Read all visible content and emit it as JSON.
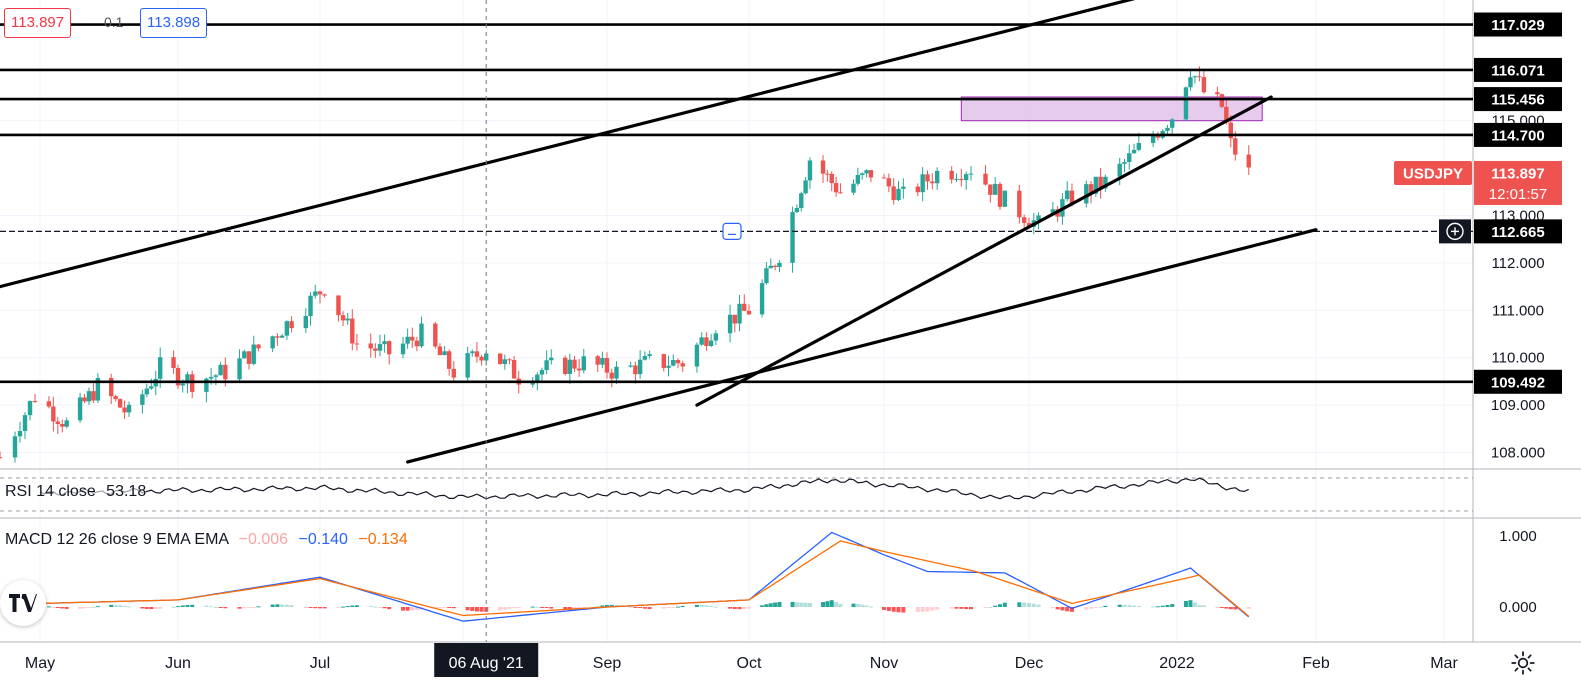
{
  "header": {
    "bid": "113.897",
    "spread": "0.1",
    "ask": "113.898"
  },
  "symbol": {
    "name": "USDJPY",
    "last": "113.897",
    "countdown": "12:01:57"
  },
  "colors": {
    "up": "#26a69a",
    "down": "#ef5350",
    "rsi_line": "#131722",
    "macd_line": "#2962ff",
    "signal_line": "#ff6d00",
    "box_fill": "#e1bee7",
    "box_stroke": "#9c27b0",
    "trendline": "#000000",
    "crosshair_label_bg": "#131722"
  },
  "rsi": {
    "label": "RSI 14 close",
    "value": "53.18"
  },
  "macd": {
    "label": "MACD 12 26 close 9 EMA EMA",
    "hist": "−0.006",
    "macd": "−0.140",
    "signal": "−0.134",
    "axis_ticks": [
      "1.000",
      "0.000"
    ]
  },
  "x_axis": {
    "labels": [
      "May",
      "Jun",
      "Jul",
      "06 Aug '21",
      "Sep",
      "Oct",
      "Nov",
      "Dec",
      "2022",
      "Feb",
      "Mar"
    ],
    "crosshair_label": "06 Aug '21"
  },
  "icons": {
    "logo": "tradingview-logo-icon",
    "settings": "gear-icon",
    "crosshair_add": "plus-circle-icon"
  },
  "chart_data": {
    "type": "candlestick",
    "title": "",
    "symbol": "USDJPY",
    "x_range": [
      "2021-04-23",
      "2022-03-31"
    ],
    "y_axis_ticks": [
      "108.000",
      "109.000",
      "110.000",
      "111.000",
      "112.000",
      "113.000",
      "115.000"
    ],
    "ylim": [
      107.7,
      117.4
    ],
    "horizontal_levels": [
      117.029,
      116.071,
      115.456,
      114.7,
      112.665,
      109.492
    ],
    "level_labels": [
      "117.029",
      "116.071",
      "115.456",
      "114.700",
      "112.665",
      "109.492"
    ],
    "crosshair_price": "112.665",
    "resistance_box": {
      "from": "2021-11-17",
      "to": "2022-01-20",
      "low": 115.0,
      "high": 115.5
    },
    "trendlines": [
      {
        "from": [
          "2021-04-23",
          111.5
        ],
        "to": [
          "2021-12-24",
          117.6
        ]
      },
      {
        "from": [
          "2021-09-20",
          109.0
        ],
        "to": [
          "2022-01-22",
          115.5
        ]
      },
      {
        "from": [
          "2021-07-20",
          107.8
        ],
        "to": [
          "2022-02-01",
          112.7
        ]
      }
    ],
    "close_path": [
      [
        "2021-04-23",
        107.9
      ],
      [
        "2021-04-30",
        109.2
      ],
      [
        "2021-05-07",
        108.6
      ],
      [
        "2021-05-14",
        109.4
      ],
      [
        "2021-05-21",
        108.8
      ],
      [
        "2021-05-28",
        109.8
      ],
      [
        "2021-06-04",
        109.5
      ],
      [
        "2021-06-11",
        109.7
      ],
      [
        "2021-06-18",
        110.2
      ],
      [
        "2021-06-25",
        110.8
      ],
      [
        "2021-07-02",
        111.5
      ],
      [
        "2021-07-09",
        110.3
      ],
      [
        "2021-07-16",
        110.1
      ],
      [
        "2021-07-23",
        110.5
      ],
      [
        "2021-07-30",
        109.7
      ],
      [
        "2021-08-06",
        110.2
      ],
      [
        "2021-08-13",
        109.6
      ],
      [
        "2021-08-20",
        109.8
      ],
      [
        "2021-08-27",
        109.9
      ],
      [
        "2021-09-03",
        109.7
      ],
      [
        "2021-09-10",
        109.9
      ],
      [
        "2021-09-17",
        109.9
      ],
      [
        "2021-09-24",
        110.7
      ],
      [
        "2021-10-01",
        111.0
      ],
      [
        "2021-10-08",
        112.2
      ],
      [
        "2021-10-15",
        114.2
      ],
      [
        "2021-10-22",
        113.5
      ],
      [
        "2021-10-29",
        113.9
      ],
      [
        "2021-11-05",
        113.4
      ],
      [
        "2021-11-12",
        113.9
      ],
      [
        "2021-11-19",
        114.0
      ],
      [
        "2021-11-26",
        113.3
      ],
      [
        "2021-12-03",
        112.8
      ],
      [
        "2021-12-10",
        113.4
      ],
      [
        "2021-12-17",
        113.7
      ],
      [
        "2021-12-24",
        114.4
      ],
      [
        "2021-12-31",
        115.1
      ],
      [
        "2022-01-04",
        116.1
      ],
      [
        "2022-01-07",
        115.6
      ],
      [
        "2022-01-11",
        115.3
      ],
      [
        "2022-01-13",
        114.5
      ],
      [
        "2022-01-17",
        113.9
      ]
    ],
    "rsi_range": [
      30,
      70
    ],
    "rsi_series": [
      [
        "2021-05-01",
        52
      ],
      [
        "2021-06-01",
        55
      ],
      [
        "2021-07-01",
        58
      ],
      [
        "2021-08-01",
        47
      ],
      [
        "2021-09-01",
        50
      ],
      [
        "2021-10-01",
        56
      ],
      [
        "2021-10-20",
        68
      ],
      [
        "2021-11-10",
        57
      ],
      [
        "2021-11-26",
        45
      ],
      [
        "2021-12-15",
        57
      ],
      [
        "2022-01-04",
        69
      ],
      [
        "2022-01-17",
        53
      ]
    ],
    "macd_range": [
      -0.4,
      1.2
    ],
    "macd_series": [
      [
        "2021-05-01",
        0.05
      ],
      [
        "2021-06-01",
        0.1
      ],
      [
        "2021-07-01",
        0.42
      ],
      [
        "2021-08-01",
        -0.2
      ],
      [
        "2021-09-01",
        0.0
      ],
      [
        "2021-10-01",
        0.1
      ],
      [
        "2021-10-20",
        1.05
      ],
      [
        "2021-11-10",
        0.5
      ],
      [
        "2021-11-26",
        0.48
      ],
      [
        "2021-12-10",
        -0.02
      ],
      [
        "2022-01-04",
        0.55
      ],
      [
        "2022-01-17",
        -0.14
      ]
    ],
    "signal_series": [
      [
        "2021-05-01",
        0.05
      ],
      [
        "2021-06-01",
        0.1
      ],
      [
        "2021-07-01",
        0.4
      ],
      [
        "2021-08-01",
        -0.12
      ],
      [
        "2021-09-01",
        0.0
      ],
      [
        "2021-10-01",
        0.1
      ],
      [
        "2021-10-22",
        0.93
      ],
      [
        "2021-11-20",
        0.5
      ],
      [
        "2021-12-10",
        0.05
      ],
      [
        "2022-01-06",
        0.45
      ],
      [
        "2022-01-17",
        -0.13
      ]
    ]
  }
}
